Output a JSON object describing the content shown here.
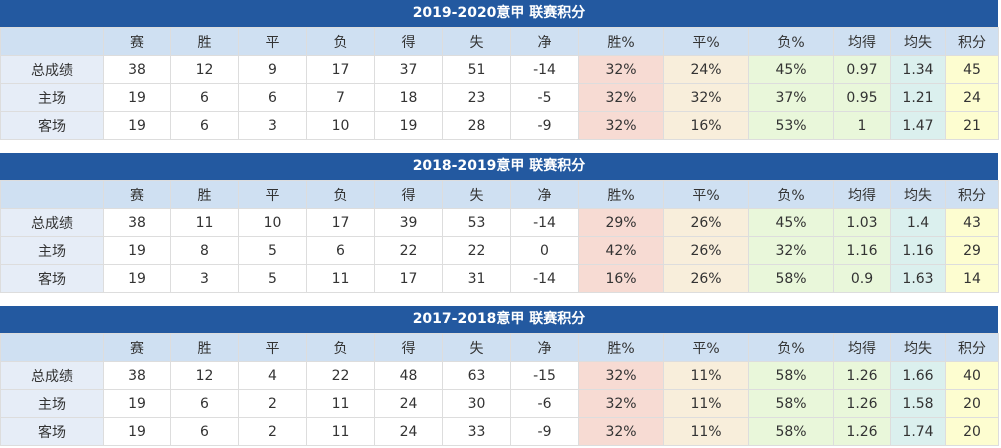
{
  "headers": [
    "",
    "赛",
    "胜",
    "平",
    "负",
    "得",
    "失",
    "净",
    "胜%",
    "平%",
    "负%",
    "均得",
    "均失",
    "积分"
  ],
  "colors": {
    "title_bar": "#2359a0",
    "header": "#cfe0f2",
    "win_pct": "#f7dbd3",
    "draw_pct": "#f8eedb",
    "loss_pct": "#e9f7da",
    "avg_for": "#e9f7da",
    "avg_against": "#dbf0ee",
    "points": "#fdfdd0"
  },
  "tables": [
    {
      "title": "2019-2020意甲 联赛积分",
      "rows": [
        [
          "总成绩",
          "38",
          "12",
          "9",
          "17",
          "37",
          "51",
          "-14",
          "32%",
          "24%",
          "45%",
          "0.97",
          "1.34",
          "45"
        ],
        [
          "主场",
          "19",
          "6",
          "6",
          "7",
          "18",
          "23",
          "-5",
          "32%",
          "32%",
          "37%",
          "0.95",
          "1.21",
          "24"
        ],
        [
          "客场",
          "19",
          "6",
          "3",
          "10",
          "19",
          "28",
          "-9",
          "32%",
          "16%",
          "53%",
          "1",
          "1.47",
          "21"
        ]
      ]
    },
    {
      "title": "2018-2019意甲 联赛积分",
      "rows": [
        [
          "总成绩",
          "38",
          "11",
          "10",
          "17",
          "39",
          "53",
          "-14",
          "29%",
          "26%",
          "45%",
          "1.03",
          "1.4",
          "43"
        ],
        [
          "主场",
          "19",
          "8",
          "5",
          "6",
          "22",
          "22",
          "0",
          "42%",
          "26%",
          "32%",
          "1.16",
          "1.16",
          "29"
        ],
        [
          "客场",
          "19",
          "3",
          "5",
          "11",
          "17",
          "31",
          "-14",
          "16%",
          "26%",
          "58%",
          "0.9",
          "1.63",
          "14"
        ]
      ]
    },
    {
      "title": "2017-2018意甲 联赛积分",
      "rows": [
        [
          "总成绩",
          "38",
          "12",
          "4",
          "22",
          "48",
          "63",
          "-15",
          "32%",
          "11%",
          "58%",
          "1.26",
          "1.66",
          "40"
        ],
        [
          "主场",
          "19",
          "6",
          "2",
          "11",
          "24",
          "30",
          "-6",
          "32%",
          "11%",
          "58%",
          "1.26",
          "1.58",
          "20"
        ],
        [
          "客场",
          "19",
          "6",
          "2",
          "11",
          "24",
          "33",
          "-9",
          "32%",
          "11%",
          "58%",
          "1.26",
          "1.74",
          "20"
        ]
      ]
    }
  ]
}
